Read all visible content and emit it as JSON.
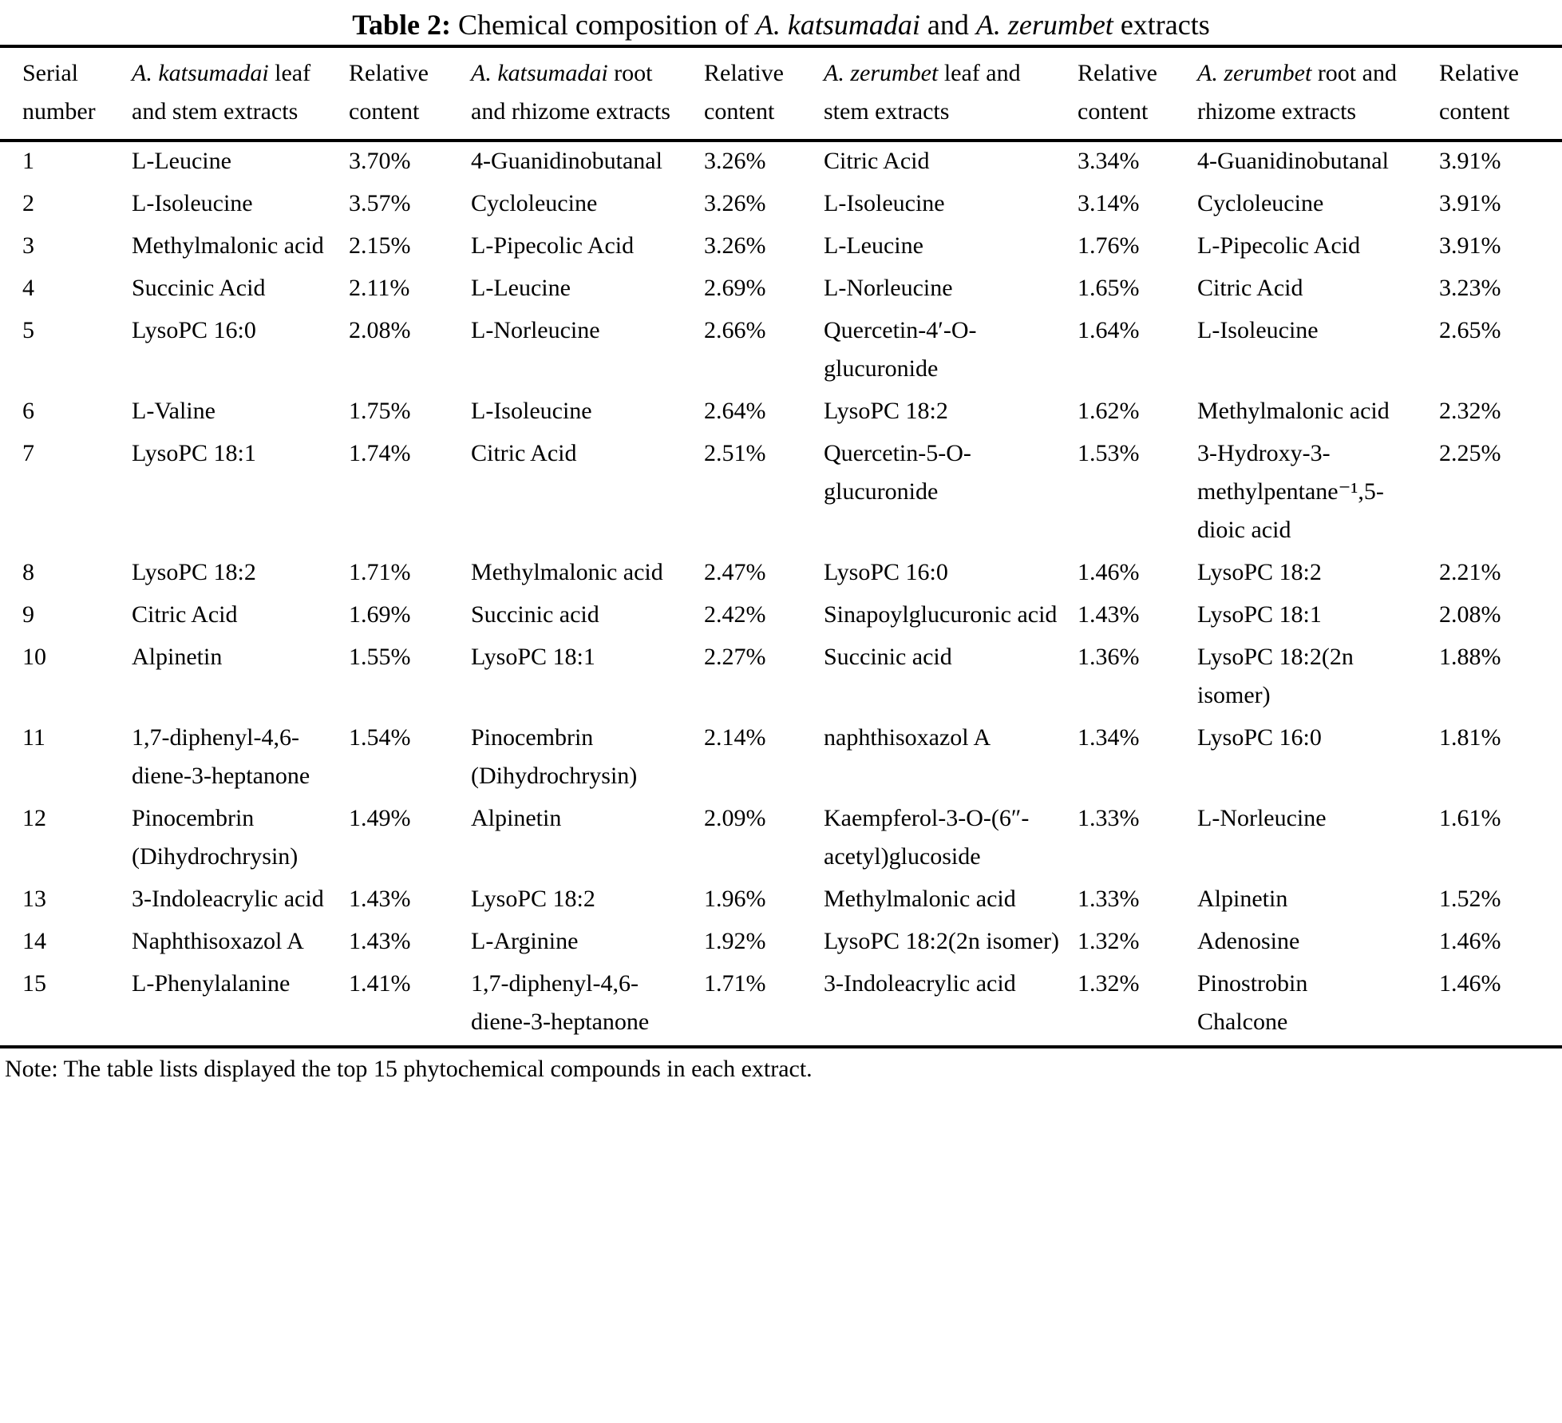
{
  "title": {
    "bold": "Table 2:",
    "text_a": "  Chemical composition of ",
    "species_1": "A. katsumadai",
    "text_b": " and ",
    "species_2": "A. zerumbet",
    "text_c": " extracts"
  },
  "table": {
    "headers": {
      "serial": "Serial number",
      "ak_leaf": {
        "species": "A. katsumadai",
        "rest": " leaf and stem extracts"
      },
      "rel1": "Relative content",
      "ak_root": {
        "species": "A. katsumadai",
        "rest": " root and rhizome extracts"
      },
      "rel2": "Relative content",
      "az_leaf": {
        "species": "A. zerumbet",
        "rest": " leaf and stem extracts"
      },
      "rel3": "Relative content",
      "az_root": {
        "species": "A. zerumbet",
        "rest": " root and rhizome extracts"
      },
      "rel4": "Relative content"
    },
    "rows": [
      {
        "serial": "1",
        "ak_leaf": {
          "name": "L-Leucine",
          "pct": "3.70%"
        },
        "ak_root": {
          "name": "4-Guanidinobutanal",
          "pct": "3.26%"
        },
        "az_leaf": {
          "name": "Citric Acid",
          "pct": "3.34%"
        },
        "az_root": {
          "name": "4-Guanidinobutanal",
          "pct": "3.91%"
        }
      },
      {
        "serial": "2",
        "ak_leaf": {
          "name": "L-Isoleucine",
          "pct": "3.57%"
        },
        "ak_root": {
          "name": "Cycloleucine",
          "pct": "3.26%"
        },
        "az_leaf": {
          "name": "L-Isoleucine",
          "pct": "3.14%"
        },
        "az_root": {
          "name": "Cycloleucine",
          "pct": "3.91%"
        }
      },
      {
        "serial": "3",
        "ak_leaf": {
          "name": "Methylmalonic acid",
          "pct": "2.15%"
        },
        "ak_root": {
          "name": "L-Pipecolic Acid",
          "pct": "3.26%"
        },
        "az_leaf": {
          "name": "L-Leucine",
          "pct": "1.76%"
        },
        "az_root": {
          "name": "L-Pipecolic Acid",
          "pct": "3.91%"
        }
      },
      {
        "serial": "4",
        "ak_leaf": {
          "name": "Succinic Acid",
          "pct": "2.11%"
        },
        "ak_root": {
          "name": "L-Leucine",
          "pct": "2.69%"
        },
        "az_leaf": {
          "name": "L-Norleucine",
          "pct": "1.65%"
        },
        "az_root": {
          "name": "Citric Acid",
          "pct": "3.23%"
        }
      },
      {
        "serial": "5",
        "ak_leaf": {
          "name": "LysoPC 16:0",
          "pct": "2.08%"
        },
        "ak_root": {
          "name": "L-Norleucine",
          "pct": "2.66%"
        },
        "az_leaf": {
          "name": "Quercetin-4′-O-glucuronide",
          "pct": "1.64%"
        },
        "az_root": {
          "name": "L-Isoleucine",
          "pct": "2.65%"
        }
      },
      {
        "serial": "6",
        "ak_leaf": {
          "name": "L-Valine",
          "pct": "1.75%"
        },
        "ak_root": {
          "name": "L-Isoleucine",
          "pct": "2.64%"
        },
        "az_leaf": {
          "name": "LysoPC 18:2",
          "pct": "1.62%"
        },
        "az_root": {
          "name": "Methylmalonic acid",
          "pct": "2.32%"
        }
      },
      {
        "serial": "7",
        "ak_leaf": {
          "name": "LysoPC 18:1",
          "pct": "1.74%"
        },
        "ak_root": {
          "name": "Citric Acid",
          "pct": "2.51%"
        },
        "az_leaf": {
          "name": "Quercetin-5-O-glucuronide",
          "pct": "1.53%"
        },
        "az_root": {
          "name": "3-Hydroxy-3-methylpentane⁻¹,5-dioic acid",
          "pct": "2.25%"
        }
      },
      {
        "serial": "8",
        "ak_leaf": {
          "name": "LysoPC 18:2",
          "pct": "1.71%"
        },
        "ak_root": {
          "name": "Methylmalonic acid",
          "pct": "2.47%"
        },
        "az_leaf": {
          "name": "LysoPC 16:0",
          "pct": "1.46%"
        },
        "az_root": {
          "name": "LysoPC 18:2",
          "pct": "2.21%"
        }
      },
      {
        "serial": "9",
        "ak_leaf": {
          "name": "Citric Acid",
          "pct": "1.69%"
        },
        "ak_root": {
          "name": "Succinic acid",
          "pct": "2.42%"
        },
        "az_leaf": {
          "name": "Sinapoylglucuronic acid",
          "pct": "1.43%"
        },
        "az_root": {
          "name": "LysoPC 18:1",
          "pct": "2.08%"
        }
      },
      {
        "serial": "10",
        "ak_leaf": {
          "name": "Alpinetin",
          "pct": "1.55%"
        },
        "ak_root": {
          "name": "LysoPC 18:1",
          "pct": "2.27%"
        },
        "az_leaf": {
          "name": "Succinic acid",
          "pct": "1.36%"
        },
        "az_root": {
          "name": "LysoPC 18:2(2n isomer)",
          "pct": "1.88%"
        }
      },
      {
        "serial": "11",
        "ak_leaf": {
          "name": "1,7-diphenyl-4,6-diene-3-heptanone",
          "pct": "1.54%"
        },
        "ak_root": {
          "name": "Pinocembrin (Dihydrochrysin)",
          "pct": "2.14%"
        },
        "az_leaf": {
          "name": "naphthisoxazol A",
          "pct": "1.34%"
        },
        "az_root": {
          "name": "LysoPC 16:0",
          "pct": "1.81%"
        }
      },
      {
        "serial": "12",
        "ak_leaf": {
          "name": "Pinocembrin (Dihydrochrysin)",
          "pct": "1.49%"
        },
        "ak_root": {
          "name": "Alpinetin",
          "pct": "2.09%"
        },
        "az_leaf": {
          "name": "Kaempferol-3-O-(6″-acetyl)glucoside",
          "pct": "1.33%"
        },
        "az_root": {
          "name": "L-Norleucine",
          "pct": "1.61%"
        }
      },
      {
        "serial": "13",
        "ak_leaf": {
          "name": "3-Indoleacrylic acid",
          "pct": "1.43%"
        },
        "ak_root": {
          "name": "LysoPC 18:2",
          "pct": "1.96%"
        },
        "az_leaf": {
          "name": "Methylmalonic acid",
          "pct": "1.33%"
        },
        "az_root": {
          "name": "Alpinetin",
          "pct": "1.52%"
        }
      },
      {
        "serial": "14",
        "ak_leaf": {
          "name": "Naphthisoxazol A",
          "pct": "1.43%"
        },
        "ak_root": {
          "name": "L-Arginine",
          "pct": "1.92%"
        },
        "az_leaf": {
          "name": "LysoPC 18:2(2n isomer)",
          "pct": "1.32%"
        },
        "az_root": {
          "name": "Adenosine",
          "pct": "1.46%"
        }
      },
      {
        "serial": "15",
        "ak_leaf": {
          "name": "L-Phenylalanine",
          "pct": "1.41%"
        },
        "ak_root": {
          "name": "1,7-diphenyl-4,6-diene-3-heptanone",
          "pct": "1.71%"
        },
        "az_leaf": {
          "name": "3-Indoleacrylic acid",
          "pct": "1.32%"
        },
        "az_root": {
          "name": "Pinostrobin Chalcone",
          "pct": "1.46%"
        }
      }
    ]
  },
  "note": "Note: The table lists displayed the top 15 phytochemical compounds in each extract."
}
